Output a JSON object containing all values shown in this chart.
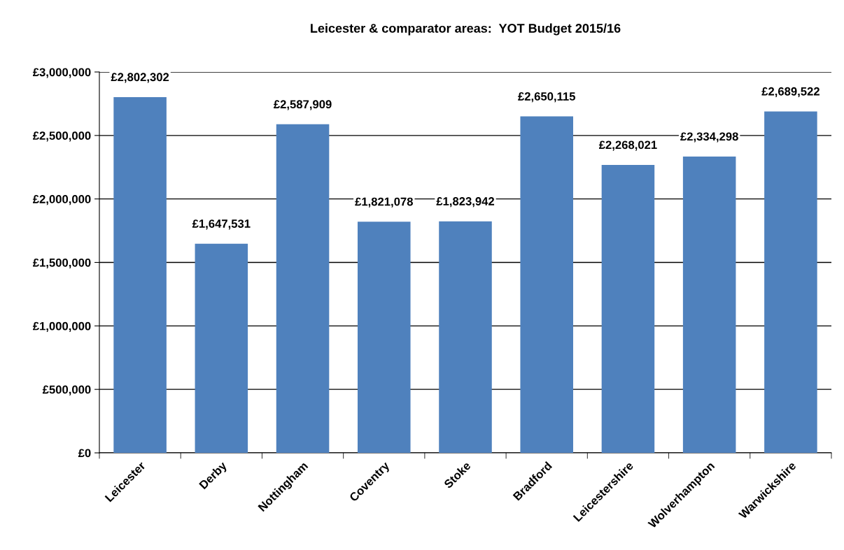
{
  "chart_data": {
    "type": "bar",
    "title": "Leicester & comparator areas:  YOT Budget 2015/16",
    "categories": [
      "Leicester",
      "Derby",
      "Nottingham",
      "Coventry",
      "Stoke",
      "Bradford",
      "Leicestershire",
      "Wolverhampton",
      "Warwickshire"
    ],
    "values": [
      2802302,
      1647531,
      2587909,
      1821078,
      1823942,
      2650115,
      2268021,
      2334298,
      2689522
    ],
    "value_labels": [
      "£2,802,302",
      "£1,647,531",
      "£2,587,909",
      "£1,821,078",
      "£1,823,942",
      "£2,650,115",
      "£2,268,021",
      "£2,334,298",
      "£2,689,522"
    ],
    "color": "#4f81bd",
    "ylim": [
      0,
      3000000
    ],
    "yticks": [
      {
        "value": 0,
        "label": "£0"
      },
      {
        "value": 500000,
        "label": "£500,000"
      },
      {
        "value": 1000000,
        "label": "£1,000,000"
      },
      {
        "value": 1500000,
        "label": "£1,500,000"
      },
      {
        "value": 2000000,
        "label": "£2,000,000"
      },
      {
        "value": 2500000,
        "label": "£2,500,000"
      },
      {
        "value": 3000000,
        "label": "£3,000,000"
      }
    ],
    "grid": "y"
  }
}
